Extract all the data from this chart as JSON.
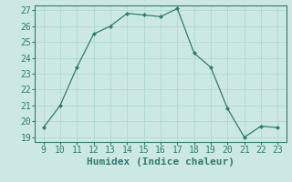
{
  "x": [
    9,
    10,
    11,
    12,
    13,
    14,
    15,
    16,
    17,
    18,
    19,
    20,
    21,
    22,
    23
  ],
  "y": [
    19.6,
    21.0,
    23.4,
    25.5,
    26.0,
    26.8,
    26.7,
    26.6,
    27.1,
    24.3,
    23.4,
    20.8,
    19.0,
    19.7,
    19.6
  ],
  "xlabel": "Humidex (Indice chaleur)",
  "ylim_min": 18.7,
  "ylim_max": 27.3,
  "xlim_min": 8.5,
  "xlim_max": 23.5,
  "yticks": [
    19,
    20,
    21,
    22,
    23,
    24,
    25,
    26,
    27
  ],
  "xticks": [
    9,
    10,
    11,
    12,
    13,
    14,
    15,
    16,
    17,
    18,
    19,
    20,
    21,
    22,
    23
  ],
  "line_color": "#2d7d6e",
  "marker_color": "#2d7d6e",
  "bg_color": "#cce8e4",
  "grid_color": "#b0d8d4",
  "axis_color": "#2d7d6e",
  "tick_label_color": "#2d7d6e",
  "xlabel_color": "#2d7d6e",
  "xlabel_fontsize": 8,
  "tick_fontsize": 7
}
